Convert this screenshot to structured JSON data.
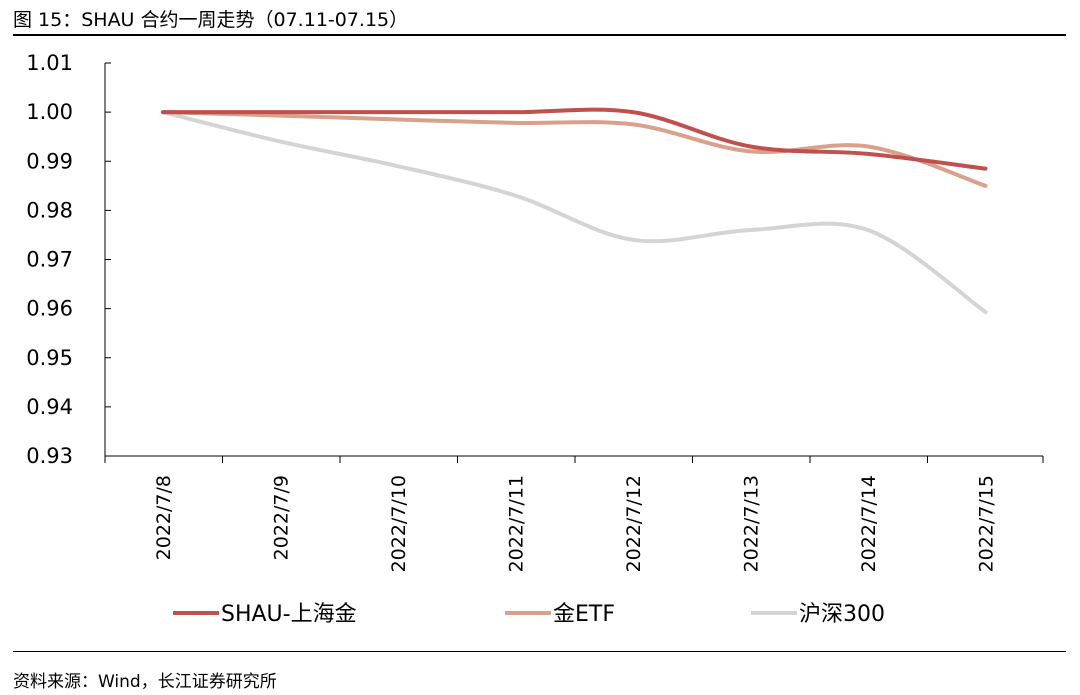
{
  "figure": {
    "title": "图 15：SHAU 合约一周走势（07.11-07.15）",
    "source": "资料来源：Wind，长江证券研究所"
  },
  "chart_data": {
    "type": "line",
    "x": [
      "2022/7/8",
      "2022/7/9",
      "2022/7/10",
      "2022/7/11",
      "2022/7/12",
      "2022/7/13",
      "2022/7/14",
      "2022/7/15"
    ],
    "series": [
      {
        "name": "SHAU-上海金",
        "color": "#c0504d",
        "values": [
          1.0,
          1.0,
          1.0,
          1.0,
          1.0,
          0.993,
          0.9915,
          0.9885
        ]
      },
      {
        "name": "金ETF",
        "color": "#d9a08a",
        "values": [
          1.0,
          0.9993,
          0.9985,
          0.9978,
          0.9975,
          0.992,
          0.993,
          0.985
        ]
      },
      {
        "name": "沪深300",
        "color": "#d4d4d4",
        "values": [
          1.0,
          0.994,
          0.989,
          0.983,
          0.974,
          0.976,
          0.976,
          0.9593
        ]
      }
    ],
    "yticks": [
      "1.01",
      "1.00",
      "0.99",
      "0.98",
      "0.97",
      "0.96",
      "0.95",
      "0.94",
      "0.93"
    ],
    "ylim": [
      0.93,
      1.01
    ],
    "grid": false,
    "legend": "bottom"
  }
}
